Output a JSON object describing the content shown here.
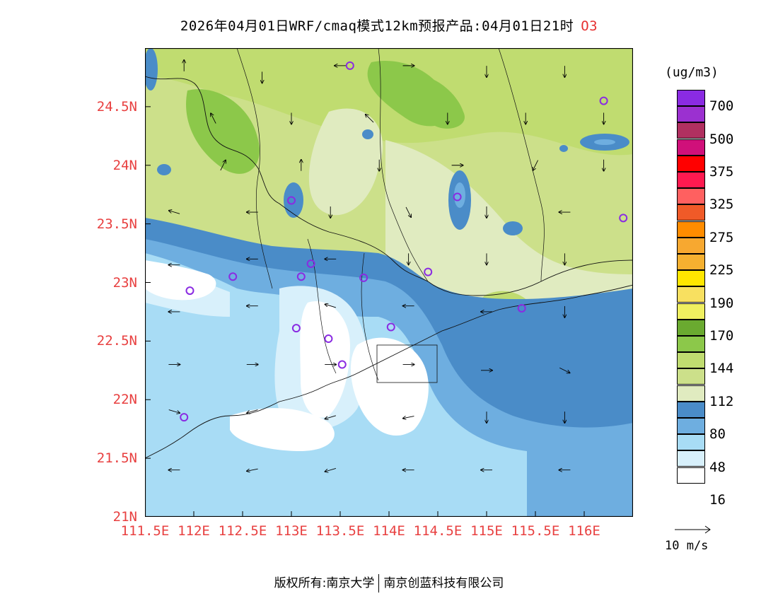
{
  "title": {
    "text": "2026年04月01日WRF/cmaq模式12km预报产品:04月01日21时",
    "species": "O3"
  },
  "axes": {
    "lat_labels": [
      "24.5N",
      "24N",
      "23.5N",
      "23N",
      "22.5N",
      "22N",
      "21.5N",
      "21N"
    ],
    "lat_values": [
      24.5,
      24.0,
      23.5,
      23.0,
      22.5,
      22.0,
      21.5,
      21.0
    ],
    "lon_labels": [
      "111.5E",
      "112E",
      "112.5E",
      "113E",
      "113.5E",
      "114E",
      "114.5E",
      "115E",
      "115.5E",
      "116E"
    ],
    "lon_values": [
      111.5,
      112.0,
      112.5,
      113.0,
      113.5,
      114.0,
      114.5,
      115.0,
      115.5,
      116.0
    ],
    "lon_range": [
      111.5,
      116.5
    ],
    "lat_range": [
      21.0,
      25.0
    ]
  },
  "legend": {
    "units": "(ug/m3)",
    "labels": [
      "700",
      "500",
      "375",
      "325",
      "275",
      "225",
      "190",
      "170",
      "144",
      "112",
      "80",
      "48",
      "16"
    ],
    "colors_top_to_bottom": [
      "#8a2be2",
      "#9b30d0",
      "#b03060",
      "#d0107a",
      "#ff0000",
      "#ff1a50",
      "#ff6060",
      "#f05a28",
      "#ff8c00",
      "#f7a830",
      "#f5b030",
      "#ffe600",
      "#f8e060",
      "#f0f060",
      "#6aaa30",
      "#8cc84a",
      "#c0dc70",
      "#cce08a",
      "#e0ebc0",
      "#4a8cc8",
      "#6eaee0",
      "#a8dcf5",
      "#d8f0fb",
      "#ffffff"
    ]
  },
  "wind_reference": {
    "label": "10 m/s"
  },
  "footer": {
    "left": "版权所有:南京大学",
    "right": "南京创蓝科技有限公司"
  },
  "stations": [
    {
      "lon": 113.6,
      "lat": 24.85
    },
    {
      "lon": 116.2,
      "lat": 24.55
    },
    {
      "lon": 113.0,
      "lat": 23.7
    },
    {
      "lon": 114.7,
      "lat": 23.73
    },
    {
      "lon": 116.4,
      "lat": 23.55
    },
    {
      "lon": 112.4,
      "lat": 23.05
    },
    {
      "lon": 111.96,
      "lat": 22.93
    },
    {
      "lon": 113.1,
      "lat": 23.05
    },
    {
      "lon": 113.2,
      "lat": 23.16
    },
    {
      "lon": 113.74,
      "lat": 23.04
    },
    {
      "lon": 114.4,
      "lat": 23.09
    },
    {
      "lon": 115.36,
      "lat": 22.78
    },
    {
      "lon": 113.05,
      "lat": 22.61
    },
    {
      "lon": 113.38,
      "lat": 22.52
    },
    {
      "lon": 114.02,
      "lat": 22.62
    },
    {
      "lon": 113.52,
      "lat": 22.3
    },
    {
      "lon": 111.9,
      "lat": 21.85
    }
  ],
  "wind_vectors": [
    {
      "lon": 111.9,
      "lat": 24.85,
      "u": 0,
      "v": 1
    },
    {
      "lon": 112.7,
      "lat": 24.75,
      "u": 0,
      "v": -1
    },
    {
      "lon": 113.5,
      "lat": 24.85,
      "u": -1,
      "v": 0
    },
    {
      "lon": 114.2,
      "lat": 24.85,
      "u": 1,
      "v": 0
    },
    {
      "lon": 115.0,
      "lat": 24.8,
      "u": 0,
      "v": -1
    },
    {
      "lon": 115.8,
      "lat": 24.8,
      "u": 0,
      "v": -1
    },
    {
      "lon": 112.2,
      "lat": 24.4,
      "u": -0.5,
      "v": 1
    },
    {
      "lon": 113.0,
      "lat": 24.4,
      "u": 0,
      "v": -1
    },
    {
      "lon": 113.8,
      "lat": 24.4,
      "u": -0.7,
      "v": 0.7
    },
    {
      "lon": 114.6,
      "lat": 24.4,
      "u": 0,
      "v": -1
    },
    {
      "lon": 115.4,
      "lat": 24.4,
      "u": 0,
      "v": -1
    },
    {
      "lon": 116.2,
      "lat": 24.4,
      "u": 0,
      "v": -1
    },
    {
      "lon": 112.3,
      "lat": 24.0,
      "u": 0.5,
      "v": 1
    },
    {
      "lon": 113.1,
      "lat": 24.0,
      "u": 0,
      "v": 1
    },
    {
      "lon": 113.9,
      "lat": 24.0,
      "u": 0,
      "v": -1
    },
    {
      "lon": 114.7,
      "lat": 24.0,
      "u": 1,
      "v": 0
    },
    {
      "lon": 115.5,
      "lat": 24.0,
      "u": -0.5,
      "v": -1
    },
    {
      "lon": 116.2,
      "lat": 24.0,
      "u": 0,
      "v": -1
    },
    {
      "lon": 111.8,
      "lat": 23.6,
      "u": -1,
      "v": 0.3
    },
    {
      "lon": 112.6,
      "lat": 23.6,
      "u": -1,
      "v": 0
    },
    {
      "lon": 113.4,
      "lat": 23.6,
      "u": 0,
      "v": -1
    },
    {
      "lon": 114.2,
      "lat": 23.6,
      "u": 0.5,
      "v": -1
    },
    {
      "lon": 115.0,
      "lat": 23.6,
      "u": 0,
      "v": -1
    },
    {
      "lon": 115.8,
      "lat": 23.6,
      "u": -1,
      "v": 0
    },
    {
      "lon": 111.8,
      "lat": 23.15,
      "u": -1,
      "v": 0
    },
    {
      "lon": 112.6,
      "lat": 23.2,
      "u": -1,
      "v": 0
    },
    {
      "lon": 113.4,
      "lat": 23.2,
      "u": -1,
      "v": 0
    },
    {
      "lon": 114.2,
      "lat": 23.2,
      "u": 0,
      "v": -1
    },
    {
      "lon": 115.0,
      "lat": 23.2,
      "u": 0,
      "v": -1
    },
    {
      "lon": 115.8,
      "lat": 23.2,
      "u": 0,
      "v": -1
    },
    {
      "lon": 111.8,
      "lat": 22.75,
      "u": -1,
      "v": 0
    },
    {
      "lon": 112.6,
      "lat": 22.8,
      "u": -1,
      "v": 0
    },
    {
      "lon": 113.4,
      "lat": 22.8,
      "u": -1,
      "v": 0.3
    },
    {
      "lon": 114.2,
      "lat": 22.8,
      "u": -1,
      "v": 0
    },
    {
      "lon": 115.0,
      "lat": 22.75,
      "u": -1,
      "v": 0
    },
    {
      "lon": 115.8,
      "lat": 22.75,
      "u": 0,
      "v": -1
    },
    {
      "lon": 111.8,
      "lat": 22.3,
      "u": 1,
      "v": 0
    },
    {
      "lon": 112.6,
      "lat": 22.3,
      "u": 1,
      "v": 0
    },
    {
      "lon": 113.4,
      "lat": 22.3,
      "u": 1,
      "v": 0
    },
    {
      "lon": 114.2,
      "lat": 22.3,
      "u": 1,
      "v": 0
    },
    {
      "lon": 115.0,
      "lat": 22.25,
      "u": 1,
      "v": 0
    },
    {
      "lon": 115.8,
      "lat": 22.25,
      "u": 1,
      "v": -0.5
    },
    {
      "lon": 111.8,
      "lat": 21.9,
      "u": 1,
      "v": -0.3
    },
    {
      "lon": 112.6,
      "lat": 21.9,
      "u": -1,
      "v": -0.3
    },
    {
      "lon": 113.4,
      "lat": 21.85,
      "u": -1,
      "v": -0.3
    },
    {
      "lon": 114.2,
      "lat": 21.85,
      "u": -1,
      "v": -0.2
    },
    {
      "lon": 115.0,
      "lat": 21.85,
      "u": 0,
      "v": -1
    },
    {
      "lon": 115.8,
      "lat": 21.85,
      "u": 0,
      "v": -1
    },
    {
      "lon": 111.8,
      "lat": 21.4,
      "u": -1,
      "v": 0
    },
    {
      "lon": 112.6,
      "lat": 21.4,
      "u": -1,
      "v": -0.2
    },
    {
      "lon": 113.4,
      "lat": 21.4,
      "u": -1,
      "v": -0.3
    },
    {
      "lon": 114.2,
      "lat": 21.4,
      "u": -1,
      "v": 0
    },
    {
      "lon": 115.0,
      "lat": 21.4,
      "u": -1,
      "v": 0
    },
    {
      "lon": 115.8,
      "lat": 21.4,
      "u": -1,
      "v": 0
    }
  ]
}
